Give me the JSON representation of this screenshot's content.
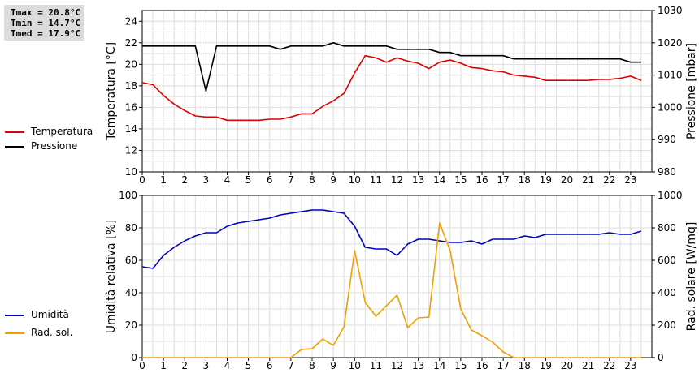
{
  "stats": [
    "Tmax = 20.8°C",
    "Tmin = 14.7°C",
    "Tmed = 17.9°C"
  ],
  "legend_top": [
    {
      "label": "Temperatura",
      "color": "#dd0000"
    },
    {
      "label": "Pressione",
      "color": "#000000"
    }
  ],
  "legend_bottom": [
    {
      "label": "Umidità",
      "color": "#0000bb"
    },
    {
      "label": "Rad. sol.",
      "color": "#f0a000"
    }
  ],
  "chart_data": [
    {
      "type": "line",
      "xlabel": "",
      "xlim": [
        0,
        24
      ],
      "xticks": [
        "0",
        "1",
        "2",
        "3",
        "4",
        "5",
        "6",
        "7",
        "8",
        "9",
        "10",
        "11",
        "12",
        "13",
        "14",
        "15",
        "16",
        "17",
        "18",
        "19",
        "20",
        "21",
        "22",
        "23"
      ],
      "ylabel": "Temperatura [°C]",
      "ylim": [
        10,
        25
      ],
      "yticks": [
        "10",
        "12",
        "14",
        "16",
        "18",
        "20",
        "22",
        "24"
      ],
      "y2label": "Pressione [mbar]",
      "y2lim": [
        980,
        1030
      ],
      "y2ticks": [
        "980",
        "990",
        "1000",
        "1010",
        "1020",
        "1030"
      ],
      "grid": true,
      "legend": "left",
      "series": [
        {
          "name": "Temperatura",
          "axis": "left",
          "color": "#dd0000",
          "x": [
            0,
            0.5,
            1,
            1.5,
            2,
            2.5,
            3,
            3.5,
            4,
            4.5,
            5,
            5.5,
            6,
            6.5,
            7,
            7.5,
            8,
            8.5,
            9,
            9.5,
            10,
            10.5,
            11,
            11.5,
            12,
            12.5,
            13,
            13.5,
            14,
            14.5,
            15,
            15.5,
            16,
            16.5,
            17,
            17.5,
            18,
            18.5,
            19,
            19.5,
            20,
            20.5,
            21,
            21.5,
            22,
            22.5,
            23,
            23.5
          ],
          "y": [
            18.3,
            18.1,
            17.1,
            16.3,
            15.7,
            15.2,
            15.1,
            15.1,
            14.8,
            14.8,
            14.8,
            14.8,
            14.9,
            14.9,
            15.1,
            15.4,
            15.4,
            16.1,
            16.6,
            17.3,
            19.2,
            20.8,
            20.6,
            20.2,
            20.6,
            20.3,
            20.1,
            19.6,
            20.2,
            20.4,
            20.1,
            19.7,
            19.6,
            19.4,
            19.3,
            19.0,
            18.9,
            18.8,
            18.5,
            18.5,
            18.5,
            18.5,
            18.5,
            18.6,
            18.6,
            18.7,
            18.9,
            18.5
          ]
        },
        {
          "name": "Pressione",
          "axis": "right",
          "color": "#000000",
          "x": [
            0,
            0.5,
            1,
            1.5,
            2,
            2.5,
            3,
            3.5,
            4,
            4.5,
            5,
            5.5,
            6,
            6.5,
            7,
            7.5,
            8,
            8.5,
            9,
            9.5,
            10,
            10.5,
            11,
            11.5,
            12,
            12.5,
            13,
            13.5,
            14,
            14.5,
            15,
            15.5,
            16,
            16.5,
            17,
            17.5,
            18,
            18.5,
            19,
            19.5,
            20,
            20.5,
            21,
            21.5,
            22,
            22.5,
            23,
            23.5
          ],
          "y": [
            1019,
            1019,
            1019,
            1019,
            1019,
            1019,
            1005,
            1019,
            1019,
            1019,
            1019,
            1019,
            1019,
            1018,
            1019,
            1019,
            1019,
            1019,
            1020,
            1019,
            1019,
            1019,
            1019,
            1019,
            1018,
            1018,
            1018,
            1018,
            1017,
            1017,
            1016,
            1016,
            1016,
            1016,
            1016,
            1015,
            1015,
            1015,
            1015,
            1015,
            1015,
            1015,
            1015,
            1015,
            1015,
            1015,
            1014,
            1014
          ]
        }
      ]
    },
    {
      "type": "line",
      "xlabel": "",
      "xlim": [
        0,
        24
      ],
      "xticks": [
        "0",
        "1",
        "2",
        "3",
        "4",
        "5",
        "6",
        "7",
        "8",
        "9",
        "10",
        "11",
        "12",
        "13",
        "14",
        "15",
        "16",
        "17",
        "18",
        "19",
        "20",
        "21",
        "22",
        "23"
      ],
      "ylabel": "Umidità relativa [%]",
      "ylim": [
        0,
        100
      ],
      "yticks": [
        "0",
        "20",
        "40",
        "60",
        "80",
        "100"
      ],
      "y2label": "Rad. solare [W/mq]",
      "y2lim": [
        0,
        1000
      ],
      "y2ticks": [
        "0",
        "200",
        "400",
        "600",
        "800",
        "1000"
      ],
      "grid": true,
      "legend": "left",
      "series": [
        {
          "name": "Umidità",
          "axis": "left",
          "color": "#0000bb",
          "x": [
            0,
            0.5,
            1,
            1.5,
            2,
            2.5,
            3,
            3.5,
            4,
            4.5,
            5,
            5.5,
            6,
            6.5,
            7,
            7.5,
            8,
            8.5,
            9,
            9.5,
            10,
            10.5,
            11,
            11.5,
            12,
            12.5,
            13,
            13.5,
            14,
            14.5,
            15,
            15.5,
            16,
            16.5,
            17,
            17.5,
            18,
            18.5,
            19,
            19.5,
            20,
            20.5,
            21,
            21.5,
            22,
            22.5,
            23,
            23.5
          ],
          "y": [
            56,
            55,
            63,
            68,
            72,
            75,
            77,
            77,
            81,
            83,
            84,
            85,
            86,
            88,
            89,
            90,
            91,
            91,
            90,
            89,
            81,
            68,
            67,
            67,
            63,
            70,
            73,
            73,
            72,
            71,
            71,
            72,
            70,
            73,
            73,
            73,
            75,
            74,
            76,
            76,
            76,
            76,
            76,
            76,
            77,
            76,
            76,
            78
          ]
        },
        {
          "name": "Rad. sol.",
          "axis": "right",
          "color": "#f0a000",
          "x": [
            0,
            0.5,
            1,
            1.5,
            2,
            2.5,
            3,
            3.5,
            4,
            4.5,
            5,
            5.5,
            6,
            6.5,
            7,
            7.5,
            8,
            8.5,
            9,
            9.5,
            10,
            10.5,
            11,
            11.5,
            12,
            12.5,
            13,
            13.5,
            14,
            14.5,
            15,
            15.5,
            16,
            16.5,
            17,
            17.5,
            18,
            18.5,
            19,
            19.5,
            20,
            20.5,
            21,
            21.5,
            22,
            22.5,
            23,
            23.5
          ],
          "y": [
            0,
            0,
            0,
            0,
            0,
            0,
            0,
            0,
            0,
            0,
            0,
            0,
            0,
            0,
            0,
            50,
            55,
            115,
            75,
            190,
            660,
            340,
            255,
            320,
            385,
            185,
            245,
            250,
            830,
            660,
            300,
            170,
            135,
            95,
            35,
            0,
            0,
            0,
            0,
            0,
            0,
            0,
            0,
            0,
            0,
            0,
            0,
            0
          ]
        }
      ]
    }
  ]
}
